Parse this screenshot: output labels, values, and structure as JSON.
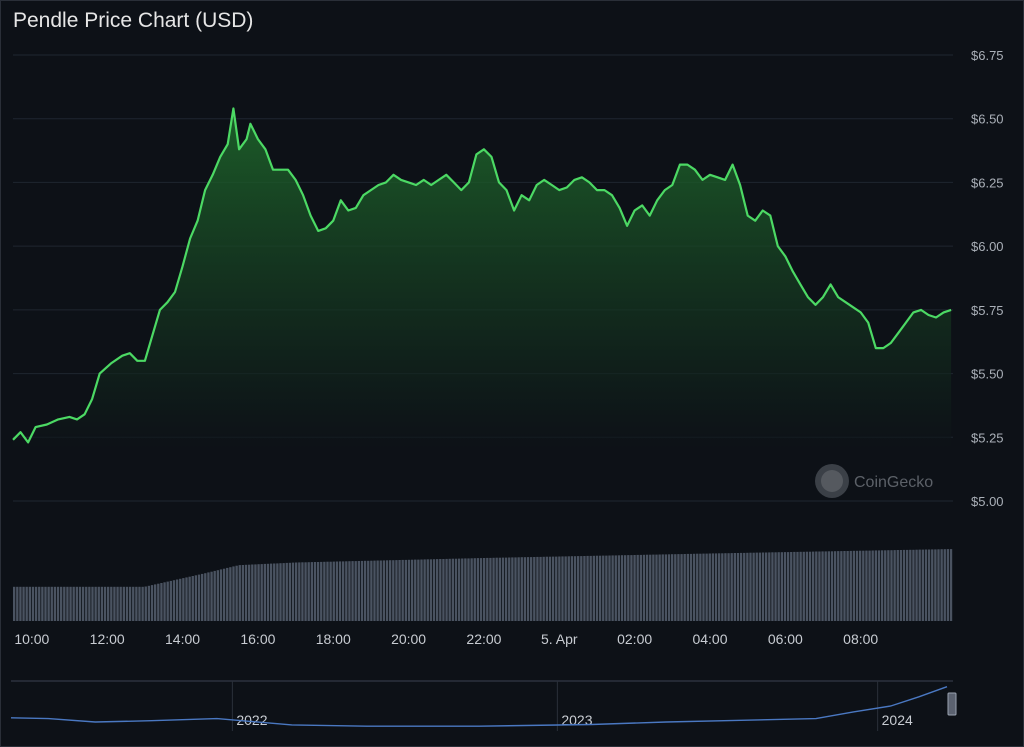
{
  "chart_data": {
    "type": "area",
    "title": "Pendle Price Chart (USD)",
    "watermark": "CoinGecko",
    "ylim": [
      5.0,
      6.75
    ],
    "yticks": [
      {
        "value": 6.75,
        "label": "$6.75"
      },
      {
        "value": 6.5,
        "label": "$6.50"
      },
      {
        "value": 6.25,
        "label": "$6.25"
      },
      {
        "value": 6.0,
        "label": "$6.00"
      },
      {
        "value": 5.75,
        "label": "$5.75"
      },
      {
        "value": 5.5,
        "label": "$5.50"
      },
      {
        "value": 5.25,
        "label": "$5.25"
      },
      {
        "value": 5.0,
        "label": "$5.00"
      }
    ],
    "xticks": [
      {
        "t": 10,
        "label": "10:00"
      },
      {
        "t": 12,
        "label": "12:00"
      },
      {
        "t": 14,
        "label": "14:00"
      },
      {
        "t": 16,
        "label": "16:00"
      },
      {
        "t": 18,
        "label": "18:00"
      },
      {
        "t": 20,
        "label": "20:00"
      },
      {
        "t": 22,
        "label": "22:00"
      },
      {
        "t": 24,
        "label": "5. Apr"
      },
      {
        "t": 26,
        "label": "02:00"
      },
      {
        "t": 28,
        "label": "04:00"
      },
      {
        "t": 30,
        "label": "06:00"
      },
      {
        "t": 32,
        "label": "08:00"
      }
    ],
    "grid": true,
    "colors": {
      "line": "#4cd964",
      "fill_top": "#1f6b2c",
      "volume": "#4a5361",
      "nav_line": "#4a78c2",
      "grid": "#1f2630"
    },
    "series": [
      {
        "points": [
          [
            9.5,
            5.24
          ],
          [
            9.7,
            5.27
          ],
          [
            9.9,
            5.23
          ],
          [
            10.1,
            5.29
          ],
          [
            10.4,
            5.3
          ],
          [
            10.7,
            5.32
          ],
          [
            11.0,
            5.33
          ],
          [
            11.2,
            5.32
          ],
          [
            11.4,
            5.34
          ],
          [
            11.6,
            5.4
          ],
          [
            11.8,
            5.5
          ],
          [
            12.1,
            5.54
          ],
          [
            12.4,
            5.57
          ],
          [
            12.6,
            5.58
          ],
          [
            12.8,
            5.55
          ],
          [
            13.0,
            5.55
          ],
          [
            13.2,
            5.65
          ],
          [
            13.4,
            5.75
          ],
          [
            13.6,
            5.78
          ],
          [
            13.8,
            5.82
          ],
          [
            14.0,
            5.92
          ],
          [
            14.2,
            6.03
          ],
          [
            14.4,
            6.1
          ],
          [
            14.6,
            6.22
          ],
          [
            14.8,
            6.28
          ],
          [
            15.0,
            6.35
          ],
          [
            15.2,
            6.4
          ],
          [
            15.35,
            6.54
          ],
          [
            15.5,
            6.38
          ],
          [
            15.7,
            6.42
          ],
          [
            15.8,
            6.48
          ],
          [
            16.0,
            6.42
          ],
          [
            16.2,
            6.38
          ],
          [
            16.4,
            6.3
          ],
          [
            16.6,
            6.3
          ],
          [
            16.8,
            6.3
          ],
          [
            17.0,
            6.26
          ],
          [
            17.2,
            6.2
          ],
          [
            17.4,
            6.12
          ],
          [
            17.6,
            6.06
          ],
          [
            17.8,
            6.07
          ],
          [
            18.0,
            6.1
          ],
          [
            18.2,
            6.18
          ],
          [
            18.4,
            6.14
          ],
          [
            18.6,
            6.15
          ],
          [
            18.8,
            6.2
          ],
          [
            19.0,
            6.22
          ],
          [
            19.2,
            6.24
          ],
          [
            19.4,
            6.25
          ],
          [
            19.6,
            6.28
          ],
          [
            19.8,
            6.26
          ],
          [
            20.0,
            6.25
          ],
          [
            20.2,
            6.24
          ],
          [
            20.4,
            6.26
          ],
          [
            20.6,
            6.24
          ],
          [
            20.8,
            6.26
          ],
          [
            21.0,
            6.28
          ],
          [
            21.2,
            6.25
          ],
          [
            21.4,
            6.22
          ],
          [
            21.6,
            6.25
          ],
          [
            21.8,
            6.36
          ],
          [
            22.0,
            6.38
          ],
          [
            22.2,
            6.35
          ],
          [
            22.4,
            6.25
          ],
          [
            22.6,
            6.22
          ],
          [
            22.8,
            6.14
          ],
          [
            23.0,
            6.2
          ],
          [
            23.2,
            6.18
          ],
          [
            23.4,
            6.24
          ],
          [
            23.6,
            6.26
          ],
          [
            23.8,
            6.24
          ],
          [
            24.0,
            6.22
          ],
          [
            24.2,
            6.23
          ],
          [
            24.4,
            6.26
          ],
          [
            24.6,
            6.27
          ],
          [
            24.8,
            6.25
          ],
          [
            25.0,
            6.22
          ],
          [
            25.2,
            6.22
          ],
          [
            25.4,
            6.2
          ],
          [
            25.6,
            6.15
          ],
          [
            25.8,
            6.08
          ],
          [
            26.0,
            6.14
          ],
          [
            26.2,
            6.16
          ],
          [
            26.4,
            6.12
          ],
          [
            26.6,
            6.18
          ],
          [
            26.8,
            6.22
          ],
          [
            27.0,
            6.24
          ],
          [
            27.2,
            6.32
          ],
          [
            27.4,
            6.32
          ],
          [
            27.6,
            6.3
          ],
          [
            27.8,
            6.26
          ],
          [
            28.0,
            6.28
          ],
          [
            28.2,
            6.27
          ],
          [
            28.4,
            6.26
          ],
          [
            28.6,
            6.32
          ],
          [
            28.8,
            6.24
          ],
          [
            29.0,
            6.12
          ],
          [
            29.2,
            6.1
          ],
          [
            29.4,
            6.14
          ],
          [
            29.6,
            6.12
          ],
          [
            29.8,
            6.0
          ],
          [
            30.0,
            5.96
          ],
          [
            30.2,
            5.9
          ],
          [
            30.4,
            5.85
          ],
          [
            30.6,
            5.8
          ],
          [
            30.8,
            5.77
          ],
          [
            31.0,
            5.8
          ],
          [
            31.2,
            5.85
          ],
          [
            31.4,
            5.8
          ],
          [
            31.6,
            5.78
          ],
          [
            31.8,
            5.76
          ],
          [
            32.0,
            5.74
          ],
          [
            32.2,
            5.7
          ],
          [
            32.4,
            5.6
          ],
          [
            32.6,
            5.6
          ],
          [
            32.8,
            5.62
          ],
          [
            33.0,
            5.66
          ],
          [
            33.2,
            5.7
          ],
          [
            33.4,
            5.74
          ],
          [
            33.6,
            5.75
          ],
          [
            33.8,
            5.73
          ],
          [
            34.0,
            5.72
          ],
          [
            34.2,
            5.74
          ],
          [
            34.4,
            5.75
          ]
        ]
      }
    ],
    "volume_trend": [
      [
        9.5,
        0.38
      ],
      [
        13.0,
        0.38
      ],
      [
        14.5,
        0.52
      ],
      [
        15.5,
        0.62
      ],
      [
        17.0,
        0.65
      ],
      [
        22.0,
        0.7
      ],
      [
        28.0,
        0.75
      ],
      [
        34.5,
        0.8
      ]
    ],
    "navigator": {
      "labels": [
        "2022",
        "2023",
        "2024"
      ],
      "trend": [
        [
          0.0,
          0.22
        ],
        [
          0.04,
          0.2
        ],
        [
          0.09,
          0.12
        ],
        [
          0.15,
          0.15
        ],
        [
          0.22,
          0.2
        ],
        [
          0.3,
          0.05
        ],
        [
          0.38,
          0.02
        ],
        [
          0.5,
          0.02
        ],
        [
          0.62,
          0.06
        ],
        [
          0.7,
          0.12
        ],
        [
          0.78,
          0.16
        ],
        [
          0.86,
          0.2
        ],
        [
          0.9,
          0.36
        ],
        [
          0.94,
          0.5
        ],
        [
          0.97,
          0.72
        ],
        [
          1.0,
          0.96
        ]
      ]
    }
  }
}
